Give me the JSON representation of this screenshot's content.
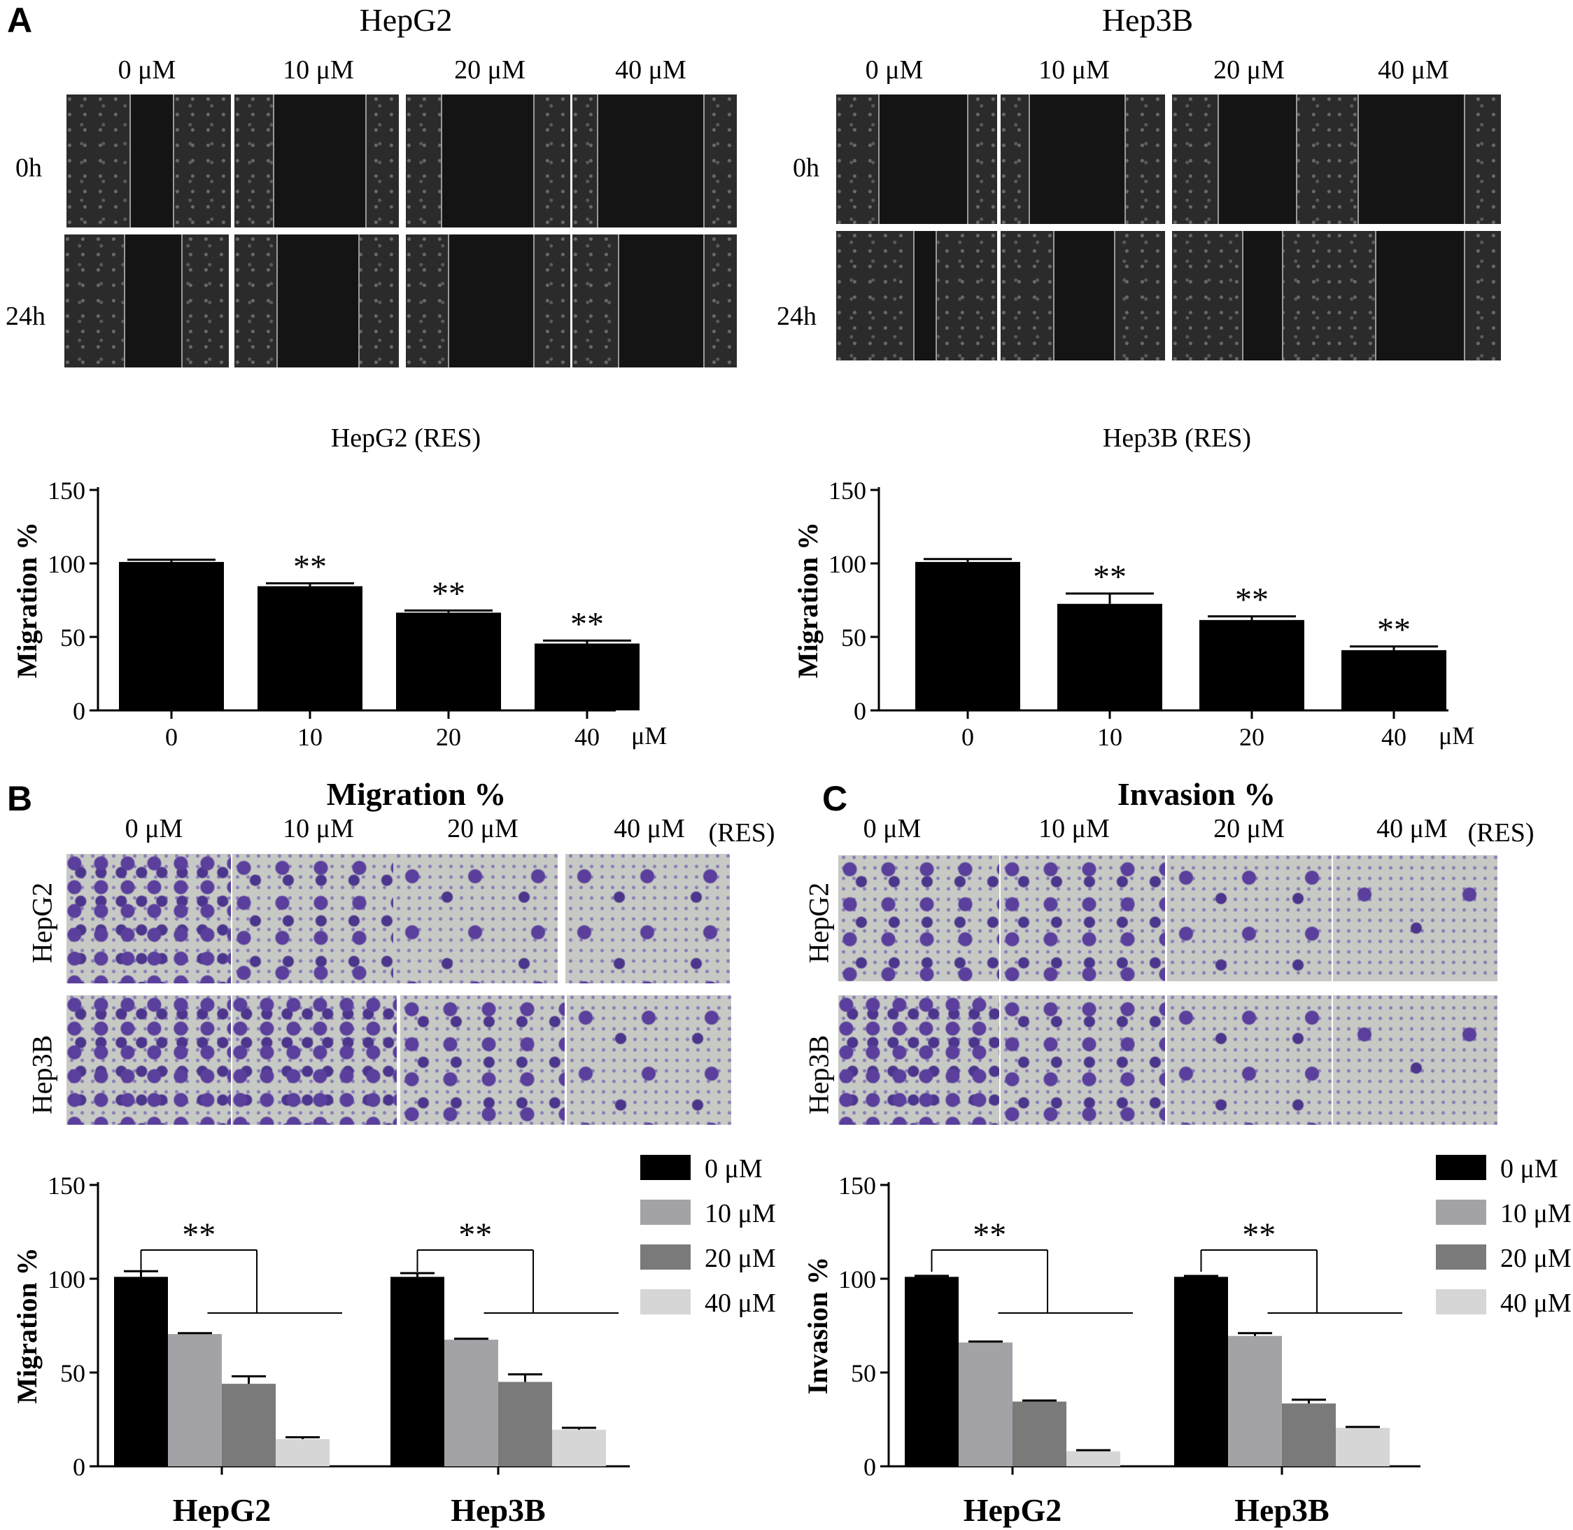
{
  "panel_letters": {
    "a": "A",
    "b": "B",
    "c": "C"
  },
  "panel_a": {
    "left_title": "HepG2",
    "right_title": "Hep3B",
    "concentrations": [
      "0 μM",
      "10 μM",
      "20 μM",
      "40 μM"
    ],
    "rows": [
      "0h",
      "24h"
    ]
  },
  "panel_b": {
    "title": "Migration %",
    "concentrations": [
      "0 μM",
      "10 μM",
      "20 μM",
      "40 μM"
    ],
    "suffix": "(RES)",
    "rows": [
      "HepG2",
      "Hep3B"
    ]
  },
  "panel_c": {
    "title": "Invasion %",
    "concentrations": [
      "0 μM",
      "10 μM",
      "20 μM",
      "40 μM"
    ],
    "suffix": "(RES)",
    "rows": [
      "HepG2",
      "Hep3B"
    ]
  },
  "colors": {
    "bar_black": "#000000",
    "bar_10": "#a3a3a7",
    "bar_20": "#7a7a7a",
    "bar_40": "#d6d6d6"
  },
  "chart_data": [
    {
      "type": "bar",
      "title": "HepG2 (RES)",
      "ylabel": "Migration %",
      "xunit": "μM",
      "categories": [
        "0",
        "10",
        "20",
        "40"
      ],
      "values": [
        101,
        84.5,
        66.5,
        45.5
      ],
      "errors": [
        1.5,
        2,
        1.5,
        2
      ],
      "significance": [
        "",
        "**",
        "**",
        "**"
      ],
      "ylim": [
        0,
        150
      ],
      "yticks": [
        0,
        50,
        100,
        150
      ]
    },
    {
      "type": "bar",
      "title": "Hep3B (RES)",
      "ylabel": "Migration %",
      "xunit": "μM",
      "categories": [
        "0",
        "10",
        "20",
        "40"
      ],
      "values": [
        101,
        72.5,
        61.5,
        41
      ],
      "errors": [
        2,
        7,
        2.5,
        2.5
      ],
      "significance": [
        "",
        "**",
        "**",
        "**"
      ],
      "ylim": [
        0,
        150
      ],
      "yticks": [
        0,
        50,
        100,
        150
      ]
    },
    {
      "type": "bar",
      "ylabel": "Migration %",
      "categories": [
        "HepG2",
        "Hep3B"
      ],
      "series": [
        {
          "name": "0 μM",
          "values": [
            101,
            101
          ],
          "errors": [
            3,
            2
          ]
        },
        {
          "name": "10 μM",
          "values": [
            70.5,
            67.5
          ],
          "errors": [
            0.5,
            0.5
          ]
        },
        {
          "name": "20 μM",
          "values": [
            44,
            45
          ],
          "errors": [
            4,
            4
          ]
        },
        {
          "name": "40 μM",
          "values": [
            14.5,
            19.5
          ],
          "errors": [
            1,
            1
          ]
        }
      ],
      "significance": [
        "**",
        "**"
      ],
      "ylim": [
        0,
        150
      ],
      "yticks": [
        0,
        50,
        100,
        150
      ],
      "legend": "top-right"
    },
    {
      "type": "bar",
      "ylabel": "Invasion %",
      "categories": [
        "HepG2",
        "Hep3B"
      ],
      "series": [
        {
          "name": "0 μM",
          "values": [
            101,
            101
          ],
          "errors": [
            0,
            0.5
          ]
        },
        {
          "name": "10 μM",
          "values": [
            66,
            69.5
          ],
          "errors": [
            0.5,
            1.5
          ]
        },
        {
          "name": "20 μM",
          "values": [
            34.5,
            33.5
          ],
          "errors": [
            0.3,
            2
          ]
        },
        {
          "name": "40 μM",
          "values": [
            8,
            20.5
          ],
          "errors": [
            0.3,
            0.5
          ]
        }
      ],
      "significance": [
        "**",
        "**"
      ],
      "ylim": [
        0,
        150
      ],
      "yticks": [
        0,
        50,
        100,
        150
      ],
      "legend": "top-right"
    }
  ]
}
